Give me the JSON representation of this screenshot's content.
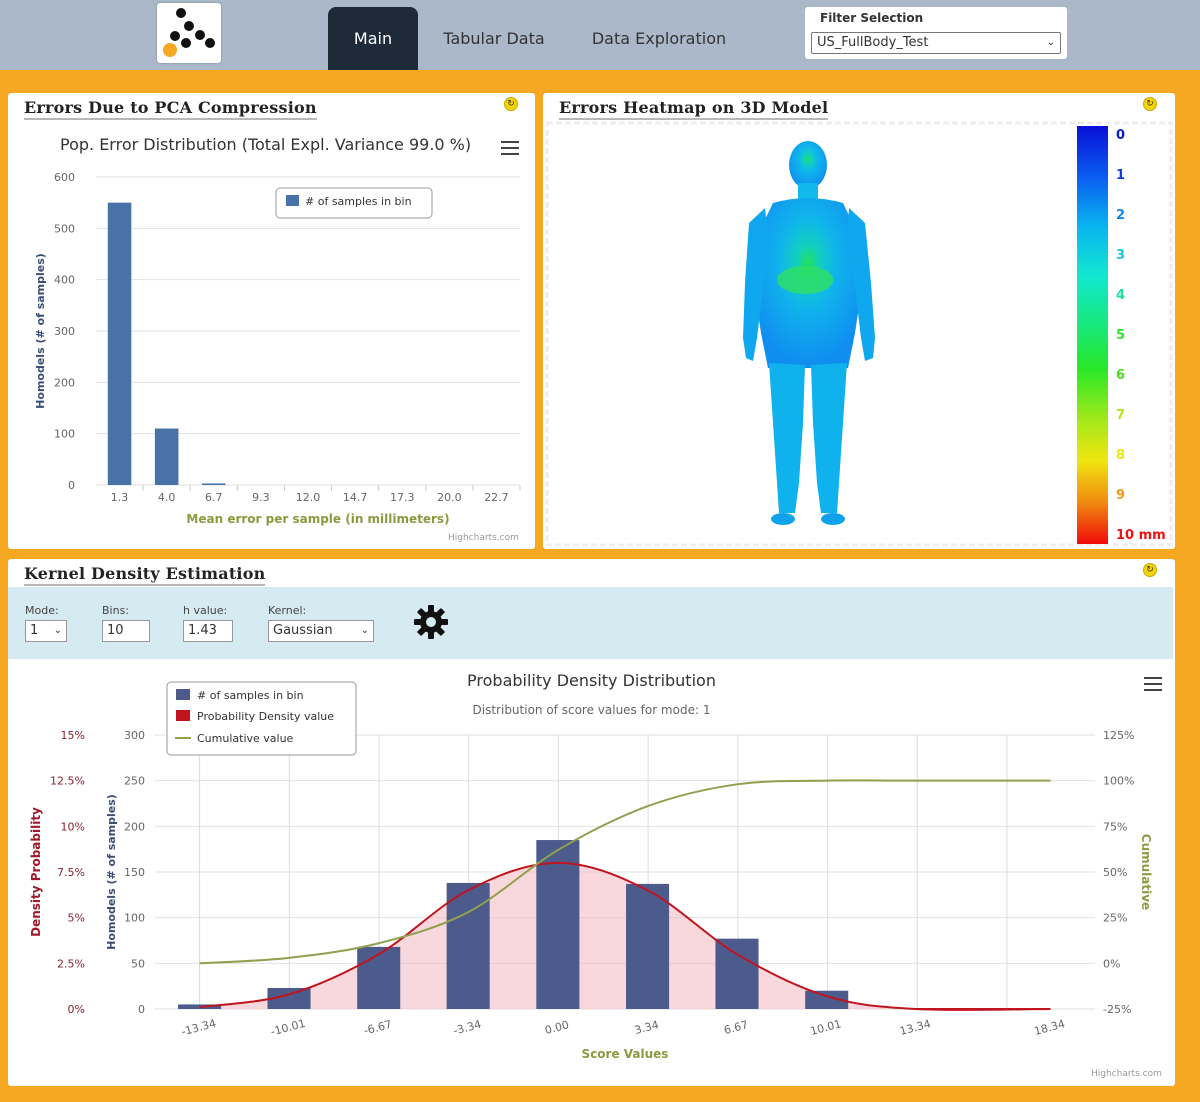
{
  "nav": {
    "tabs": [
      {
        "label": "Main",
        "active": true
      },
      {
        "label": "Tabular Data",
        "active": false
      },
      {
        "label": "Data Exploration",
        "active": false
      }
    ]
  },
  "filter": {
    "label": "Filter Selection",
    "value": "US_FullBody_Test"
  },
  "pca_panel": {
    "title": "Errors Due to PCA Compression",
    "refresh_icon": "refresh-icon",
    "credits": "Highcharts.com"
  },
  "heatmap_panel": {
    "title": "Errors Heatmap on 3D Model",
    "refresh_icon": "refresh-icon",
    "scale_labels": [
      "0",
      "1",
      "2",
      "3",
      "4",
      "5",
      "6",
      "7",
      "8",
      "9",
      "10 mm"
    ],
    "scale_colors": [
      "#0a1bd6",
      "#0a3fe8",
      "#0a8bf0",
      "#10c8e8",
      "#19e0a0",
      "#2ee82e",
      "#4cdc1e",
      "#b4e61a",
      "#f0e610",
      "#f09a10",
      "#f01010"
    ]
  },
  "kde_panel": {
    "title": "Kernel Density Estimation",
    "refresh_icon": "refresh-icon",
    "controls": {
      "mode_label": "Mode:",
      "mode_value": "1",
      "bins_label": "Bins:",
      "bins_value": "10",
      "h_label": "h value:",
      "h_value": "1.43",
      "kernel_label": "Kernel:",
      "kernel_value": "Gaussian",
      "settings_icon": "gear-icon"
    },
    "credits": "Highcharts.com"
  },
  "chart_data": [
    {
      "type": "bar",
      "title": "Pop. Error Distribution (Total Expl. Variance 99.0 %)",
      "xlabel": "Mean error per sample (in millimeters)",
      "ylabel": "Homodels (# of samples)",
      "categories": [
        "1.3",
        "4.0",
        "6.7",
        "9.3",
        "12.0",
        "14.7",
        "17.3",
        "20.0",
        "22.7"
      ],
      "yticks": [
        "0",
        "100",
        "200",
        "300",
        "400",
        "500",
        "600"
      ],
      "ylim": [
        0,
        600
      ],
      "series": [
        {
          "name": "# of samples in bin",
          "color": "#4872a8",
          "values": [
            550,
            110,
            3,
            0,
            0,
            0,
            0,
            0,
            0
          ]
        }
      ],
      "legend": "top-right",
      "grid": true
    },
    {
      "type": "bar",
      "title": "Probability Density Distribution",
      "subtitle": "Distribution of score values for mode: 1",
      "xlabel": "Score Values",
      "ylabel": "Homodels (# of samples)",
      "ylabel_left2": "Density Probability",
      "ylabel_right": "Cumulative",
      "x_ticks": [
        "-13.34",
        "-10.01",
        "-6.67",
        "-3.34",
        "0.00",
        "3.34",
        "6.67",
        "10.01",
        "13.34",
        "18.34"
      ],
      "density_ticks": [
        "0%",
        "2.5%",
        "5%",
        "7.5%",
        "10%",
        "12.5%",
        "15%"
      ],
      "count_ticks": [
        "0",
        "50",
        "100",
        "150",
        "200",
        "250",
        "300"
      ],
      "cumulative_ticks": [
        "-25%",
        "0%",
        "25%",
        "50%",
        "75%",
        "100%",
        "125%"
      ],
      "ylim": [
        0,
        300
      ],
      "bins": [
        {
          "x": -13.34,
          "count": 5
        },
        {
          "x": -10.01,
          "count": 23
        },
        {
          "x": -6.67,
          "count": 68
        },
        {
          "x": -3.34,
          "count": 138
        },
        {
          "x": 0.0,
          "count": 185
        },
        {
          "x": 3.34,
          "count": 137
        },
        {
          "x": 6.67,
          "count": 77
        },
        {
          "x": 10.01,
          "count": 20
        },
        {
          "x": 16.68,
          "count": 0
        }
      ],
      "density": [
        {
          "x": -13.34,
          "y": 0.1
        },
        {
          "x": -10.01,
          "y": 0.8
        },
        {
          "x": -6.67,
          "y": 3.0
        },
        {
          "x": -3.34,
          "y": 6.5
        },
        {
          "x": 0.0,
          "y": 8.0
        },
        {
          "x": 3.34,
          "y": 6.5
        },
        {
          "x": 6.67,
          "y": 3.0
        },
        {
          "x": 10.01,
          "y": 0.7
        },
        {
          "x": 13.34,
          "y": 0.0
        },
        {
          "x": 18.34,
          "y": 0.0
        }
      ],
      "cumulative": [
        {
          "x": -13.34,
          "y": 0
        },
        {
          "x": -10.01,
          "y": 3
        },
        {
          "x": -6.67,
          "y": 11
        },
        {
          "x": -3.34,
          "y": 28
        },
        {
          "x": 0.0,
          "y": 62
        },
        {
          "x": 3.34,
          "y": 86
        },
        {
          "x": 6.67,
          "y": 98
        },
        {
          "x": 10.01,
          "y": 100
        },
        {
          "x": 13.34,
          "y": 100
        },
        {
          "x": 18.34,
          "y": 100
        }
      ],
      "series_names": [
        "# of samples in bin",
        "Probability Density value",
        "Cumulative value"
      ],
      "series_colors": [
        "#4c5a8c",
        "#c0141e",
        "#8fa04e"
      ],
      "legend": "top-left",
      "grid": true
    }
  ]
}
